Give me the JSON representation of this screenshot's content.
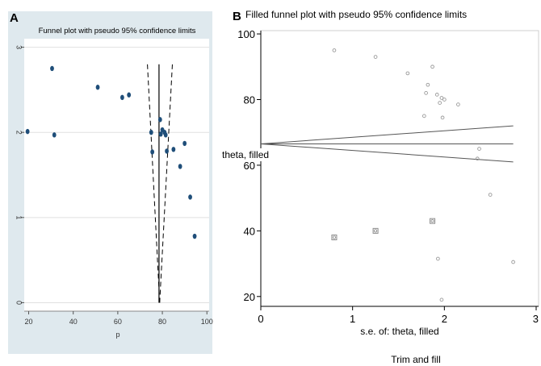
{
  "chart_data": [
    {
      "panel_label": "A",
      "type": "scatter",
      "title": "Funnel plot with pseudo 95% confidence limits",
      "xlabel": "p",
      "ylabel": "",
      "x_ticks": [
        20,
        40,
        60,
        80,
        100
      ],
      "y_ticks": [
        0,
        1,
        2,
        3
      ],
      "xlim": [
        18,
        101
      ],
      "ylim": [
        3.1,
        -0.1
      ],
      "y_reversed": true,
      "grid": "horizontal",
      "background": "#dfe9ee",
      "plot_background": "#ffffff",
      "marker_color": "#1f4e79",
      "points": [
        {
          "x": 19.5,
          "y": 2.01
        },
        {
          "x": 30.5,
          "y": 2.75
        },
        {
          "x": 31.5,
          "y": 1.97
        },
        {
          "x": 51,
          "y": 2.53
        },
        {
          "x": 62,
          "y": 2.41
        },
        {
          "x": 65,
          "y": 2.44
        },
        {
          "x": 75,
          "y": 2.0
        },
        {
          "x": 75.5,
          "y": 1.77
        },
        {
          "x": 79,
          "y": 2.15
        },
        {
          "x": 79.3,
          "y": 1.98
        },
        {
          "x": 80,
          "y": 2.03
        },
        {
          "x": 81,
          "y": 2.0
        },
        {
          "x": 81.5,
          "y": 1.97
        },
        {
          "x": 82,
          "y": 1.78
        },
        {
          "x": 85,
          "y": 1.8
        },
        {
          "x": 88,
          "y": 1.6
        },
        {
          "x": 90,
          "y": 1.87
        },
        {
          "x": 92.5,
          "y": 1.24
        },
        {
          "x": 94.5,
          "y": 0.78
        }
      ],
      "pooled_line": {
        "x": 78.5,
        "y_from": 0,
        "y_to": 2.8
      },
      "ci_left": [
        [
          78.8,
          0
        ],
        [
          73.3,
          2.8
        ]
      ],
      "ci_right": [
        [
          78.8,
          0
        ],
        [
          84.5,
          2.8
        ]
      ]
    },
    {
      "panel_label": "B",
      "type": "scatter",
      "title": "Filled funnel plot with pseudo 95% confidence limits",
      "xlabel": "s.e. of: theta, filled",
      "ylabel": "theta, filled",
      "caption": "Trim and fill",
      "x_ticks": [
        0,
        1,
        2,
        3
      ],
      "y_ticks": [
        20,
        40,
        60,
        80,
        100
      ],
      "xlim": [
        0,
        3
      ],
      "ylim": [
        17,
        101
      ],
      "grid": "none",
      "marker_color": "#9a9a9a",
      "observed_points": [
        {
          "x": 0.8,
          "y": 95
        },
        {
          "x": 1.25,
          "y": 93
        },
        {
          "x": 1.6,
          "y": 88
        },
        {
          "x": 1.8,
          "y": 82
        },
        {
          "x": 1.82,
          "y": 84.5
        },
        {
          "x": 1.87,
          "y": 90
        },
        {
          "x": 1.92,
          "y": 81.5
        },
        {
          "x": 1.95,
          "y": 79
        },
        {
          "x": 1.97,
          "y": 80.5
        },
        {
          "x": 2.0,
          "y": 80
        },
        {
          "x": 1.98,
          "y": 74.5
        },
        {
          "x": 1.78,
          "y": 75
        },
        {
          "x": 2.15,
          "y": 78.5
        },
        {
          "x": 2.38,
          "y": 65
        },
        {
          "x": 2.36,
          "y": 62
        },
        {
          "x": 2.5,
          "y": 51
        },
        {
          "x": 1.93,
          "y": 31.5
        },
        {
          "x": 1.97,
          "y": 19
        },
        {
          "x": 2.75,
          "y": 30.5
        }
      ],
      "filled_points": [
        {
          "x": 0.8,
          "y": 38
        },
        {
          "x": 1.25,
          "y": 40
        },
        {
          "x": 1.87,
          "y": 43
        }
      ],
      "theta_line": {
        "y": 66.5,
        "x_from": 0,
        "x_to": 2.75
      },
      "ci_upper": [
        [
          0,
          66.5
        ],
        [
          2.75,
          72
        ]
      ],
      "ci_lower": [
        [
          0,
          66.5
        ],
        [
          2.75,
          61
        ]
      ]
    }
  ]
}
